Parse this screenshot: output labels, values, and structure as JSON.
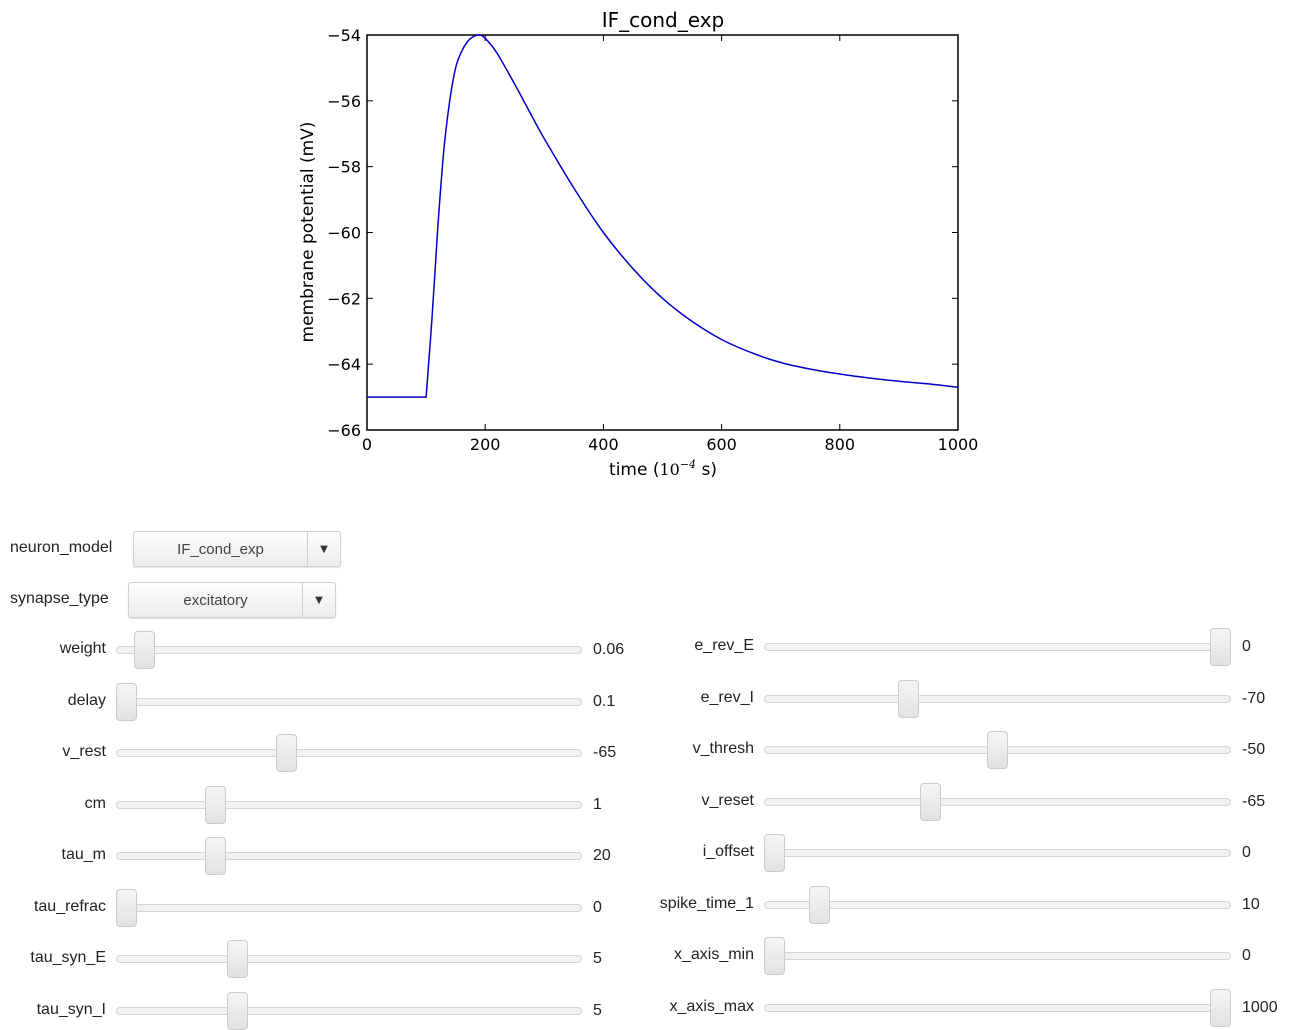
{
  "chart_data": {
    "type": "line",
    "title": "IF_cond_exp",
    "xlabel_prefix": "time (",
    "xlabel_math": "10",
    "xlabel_exp": "−4",
    "xlabel_suffix": " s)",
    "ylabel": "membrane potential (mV)",
    "xlim": [
      0,
      1000
    ],
    "ylim": [
      -66,
      -54
    ],
    "xticks": [
      0,
      200,
      400,
      600,
      800,
      1000
    ],
    "xtick_labels": [
      "0",
      "200",
      "400",
      "600",
      "800",
      "1000"
    ],
    "yticks": [
      -54,
      -56,
      -58,
      -60,
      -62,
      -64,
      -66
    ],
    "ytick_labels": [
      "−54",
      "−56",
      "−58",
      "−60",
      "−62",
      "−64",
      "−66"
    ],
    "grid": false,
    "series": [
      {
        "color": "#0000cc",
        "x": [
          0,
          100,
          110,
          120,
          130,
          140,
          150,
          160,
          170,
          180,
          190,
          200,
          220,
          250,
          280,
          300,
          350,
          400,
          450,
          500,
          550,
          600,
          650,
          700,
          750,
          800,
          850,
          900,
          950,
          1000
        ],
        "y": [
          -65,
          -65,
          -62.6,
          -59.8,
          -57.5,
          -56.0,
          -55.0,
          -54.5,
          -54.2,
          -54.05,
          -54.0,
          -54.1,
          -54.55,
          -55.5,
          -56.5,
          -57.15,
          -58.65,
          -60.0,
          -61.1,
          -62.0,
          -62.7,
          -63.25,
          -63.65,
          -63.95,
          -64.15,
          -64.3,
          -64.42,
          -64.52,
          -64.6,
          -64.7
        ]
      }
    ]
  },
  "controls": {
    "neuron_model": {
      "label": "neuron_model",
      "value": "IF_cond_exp"
    },
    "synapse_type": {
      "label": "synapse_type",
      "value": "excitatory"
    },
    "left_sliders": [
      {
        "label": "weight",
        "value": "0.06",
        "fraction": 0.04
      },
      {
        "label": "delay",
        "value": "0.1",
        "fraction": 0.0
      },
      {
        "label": "v_rest",
        "value": "-65",
        "fraction": 0.36
      },
      {
        "label": "cm",
        "value": "1",
        "fraction": 0.2
      },
      {
        "label": "tau_m",
        "value": "20",
        "fraction": 0.2
      },
      {
        "label": "tau_refrac",
        "value": "0",
        "fraction": 0.0
      },
      {
        "label": "tau_syn_E",
        "value": "5",
        "fraction": 0.25
      },
      {
        "label": "tau_syn_I",
        "value": "5",
        "fraction": 0.25
      }
    ],
    "right_sliders": [
      {
        "label": "e_rev_E",
        "value": "0",
        "fraction": 1.0
      },
      {
        "label": "e_rev_I",
        "value": "-70",
        "fraction": 0.3
      },
      {
        "label": "v_thresh",
        "value": "-50",
        "fraction": 0.5
      },
      {
        "label": "v_reset",
        "value": "-65",
        "fraction": 0.35
      },
      {
        "label": "i_offset",
        "value": "0",
        "fraction": 0.0
      },
      {
        "label": "spike_time_1",
        "value": "10",
        "fraction": 0.1
      },
      {
        "label": "x_axis_min",
        "value": "0",
        "fraction": 0.0
      },
      {
        "label": "x_axis_max",
        "value": "1000",
        "fraction": 1.0
      }
    ]
  }
}
